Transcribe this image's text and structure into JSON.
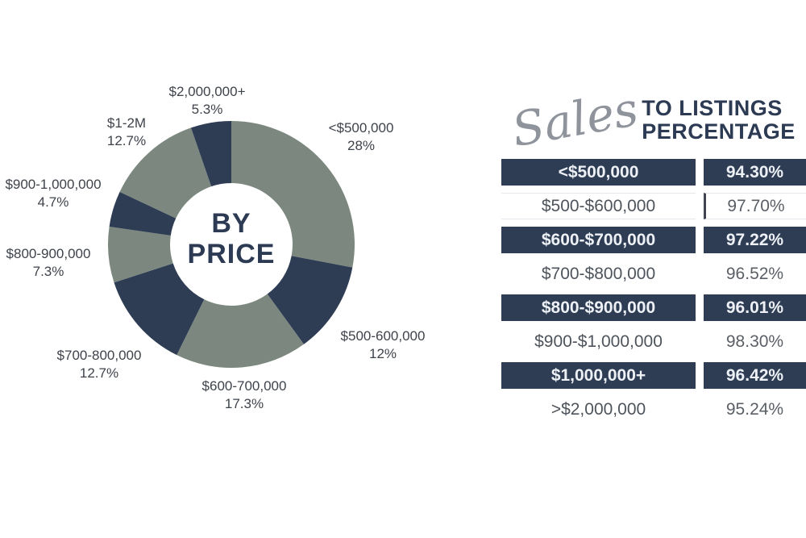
{
  "chart_data": [
    {
      "type": "pie",
      "subtype": "donut",
      "center_label": [
        "BY",
        "PRICE"
      ],
      "start_angle_deg": 0,
      "direction": "clockwise",
      "categories": [
        "<$500,000",
        "$500-600,000",
        "$600-700,000",
        "$700-800,000",
        "$800-900,000",
        "$900-1,000,000",
        "$1-2M",
        "$2,000,000+"
      ],
      "values": [
        28,
        12,
        17.3,
        12.7,
        7.3,
        4.7,
        12.7,
        5.3
      ],
      "percent_labels": [
        "28%",
        "12%",
        "17.3%",
        "12.7%",
        "7.3%",
        "4.7%",
        "12.7%",
        "5.3%"
      ],
      "slice_colors": [
        "#7C887F",
        "#2E3D54",
        "#7C887F",
        "#2E3D54",
        "#7C887F",
        "#2E3D54",
        "#7C887F",
        "#2E3D54"
      ],
      "legend_position": "around-labels"
    },
    {
      "type": "table",
      "title": {
        "script_word": "Sales",
        "rest": [
          "TO LISTINGS",
          "PERCENTAGE"
        ]
      },
      "rows": [
        {
          "label": "<$500,000",
          "value": "94.30%",
          "highlighted": true,
          "divider": false
        },
        {
          "label": "$500-$600,000",
          "value": "97.70%",
          "highlighted": false,
          "divider": true
        },
        {
          "label": "$600-$700,000",
          "value": "97.22%",
          "highlighted": true,
          "divider": false
        },
        {
          "label": "$700-$800,000",
          "value": "96.52%",
          "highlighted": false,
          "divider": false
        },
        {
          "label": "$800-$900,000",
          "value": "96.01%",
          "highlighted": true,
          "divider": false
        },
        {
          "label": "$900-$1,000,000",
          "value": "98.30%",
          "highlighted": false,
          "divider": false
        },
        {
          "label": "$1,000,000+",
          "value": "96.42%",
          "highlighted": true,
          "divider": false
        },
        {
          "label": ">$2,000,000",
          "value": "95.24%",
          "highlighted": false,
          "divider": false
        }
      ]
    }
  ],
  "colors": {
    "slice_gray_green": "#7C887F",
    "slice_navy": "#2E3D54",
    "title_navy": "#2C3A53",
    "script_gray": "#8F949C",
    "donut_label_text": "#3E434B",
    "highlight_row_bg": "#2E3D54",
    "highlight_row_text": "#EDF1F6",
    "plain_row_text": "#4E545C",
    "background": "#FFFFFF"
  }
}
